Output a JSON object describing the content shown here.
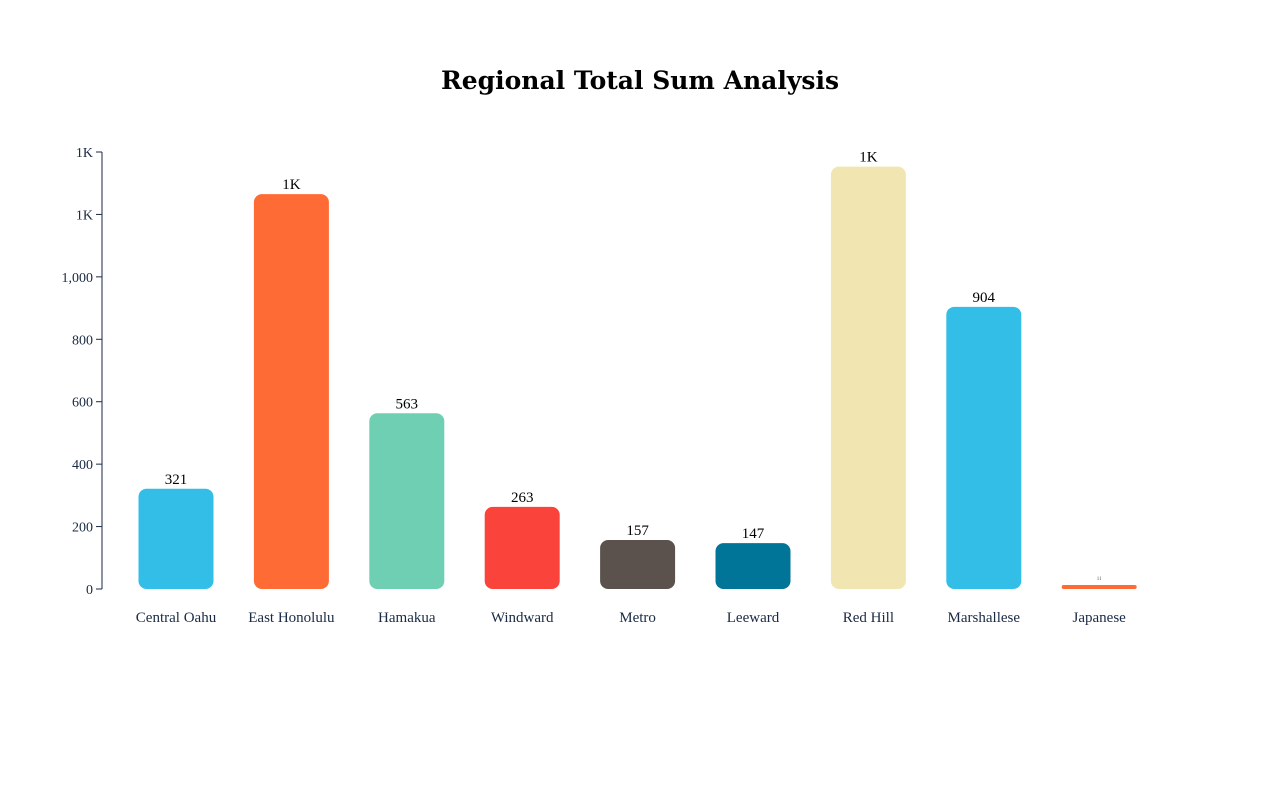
{
  "chart_data": {
    "type": "bar",
    "title": "Regional Total Sum Analysis",
    "xlabel": "",
    "ylabel": "",
    "categories": [
      "Central Oahu",
      "East Honolulu",
      "Hamakua",
      "Windward",
      "Metro",
      "Leeward",
      "Red Hill",
      "Marshallese",
      "Japanese"
    ],
    "values": [
      321,
      1265,
      563,
      263,
      157,
      147,
      1353,
      904,
      11
    ],
    "value_labels": [
      "321",
      "1K",
      "563",
      "263",
      "157",
      "147",
      "1K",
      "904",
      "11"
    ],
    "colors": [
      "#33BEE8",
      "#FF6B35",
      "#6ECFB3",
      "#FA433A",
      "#5B524E",
      "#017598",
      "#F1E6B1",
      "#33BEE8",
      "#FF6B35"
    ],
    "ylim": [
      0,
      1400
    ],
    "yticks": [
      0,
      200,
      400,
      600,
      800,
      1000,
      1200,
      1400
    ],
    "ytick_labels": [
      "0",
      "200",
      "400",
      "600",
      "800",
      "1,000",
      "1K",
      "1K"
    ],
    "grid": false,
    "legend": "none"
  }
}
